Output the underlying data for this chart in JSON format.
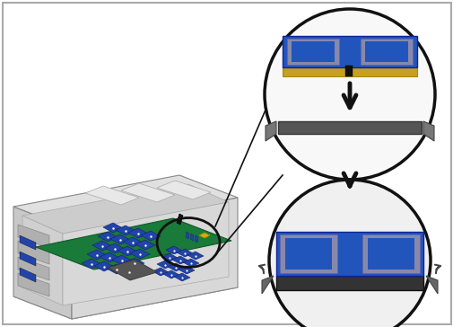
{
  "background_color": "#ffffff",
  "border_color": "#aaaaaa",
  "fig_width": 5.06,
  "fig_height": 3.64,
  "dpi": 100,
  "server_body": "#e8e8e8",
  "server_inner": "#d0d0d0",
  "server_edge": "#999999",
  "server_front": "#c8c8c8",
  "pcb_color": "#1a7a3a",
  "pcb_edge": "#0f5a28",
  "dimm_blue": "#2255bb",
  "dimm_gold": "#c8a020",
  "dimm_spreader": "#9090a8",
  "dimm_dark": "#222244",
  "slot_color": "#444444",
  "clip_color": "#666666",
  "circle_edge": "#111111",
  "arrow_color": "#222222",
  "line_color": "#111111"
}
